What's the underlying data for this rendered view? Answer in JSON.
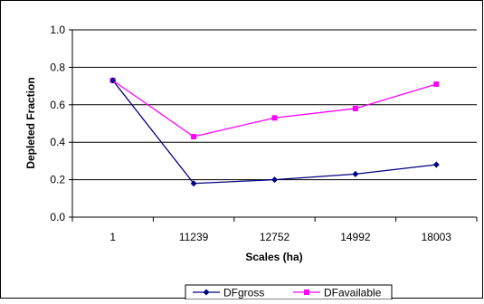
{
  "chart_data": {
    "type": "line",
    "title": "",
    "xlabel": "Scales (ha)",
    "ylabel": "Depleted Fraction",
    "categories": [
      "1",
      "11239",
      "12752",
      "14992",
      "18003"
    ],
    "ylim": [
      0,
      1.0
    ],
    "yticks": [
      "0.0",
      "0.2",
      "0.4",
      "0.6",
      "0.8",
      "1.0"
    ],
    "grid": "horizontal",
    "legend_position": "bottom",
    "series": [
      {
        "name": "DFgross",
        "values": [
          0.73,
          0.18,
          0.2,
          0.23,
          0.28
        ],
        "color": "#000080",
        "marker": "diamond"
      },
      {
        "name": "DFavailable",
        "values": [
          0.73,
          0.43,
          0.53,
          0.58,
          0.71
        ],
        "color": "#FF00FF",
        "marker": "square"
      }
    ]
  }
}
